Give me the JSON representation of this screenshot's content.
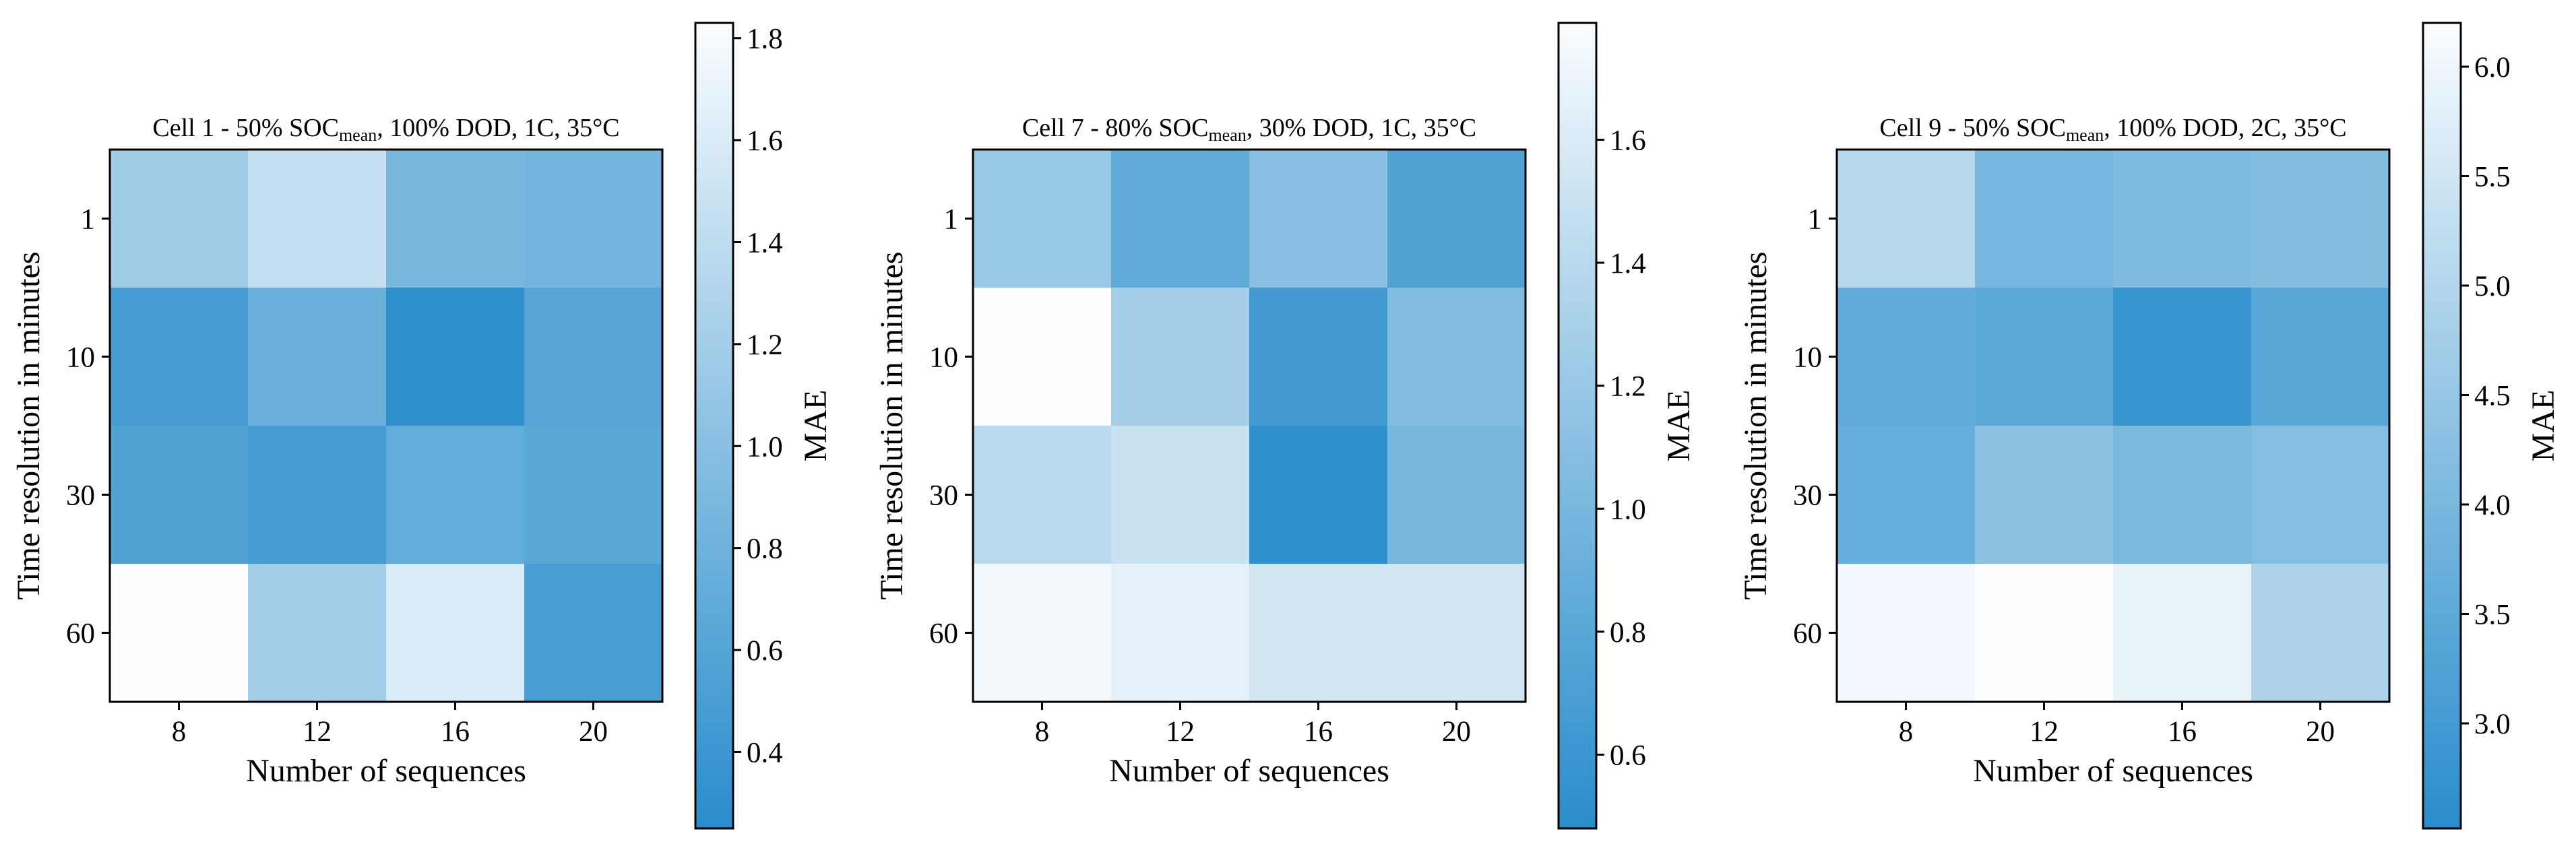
{
  "chart_data": [
    {
      "type": "heatmap",
      "title": {
        "prefix": "Cell 1 - 50% SOC",
        "subscript": "mean",
        "suffix": ", 100% DOD, 1C, 35°C"
      },
      "xlabel": "Number of sequences",
      "ylabel": "Time resolution in minutes",
      "x_categories": [
        "8",
        "12",
        "16",
        "20"
      ],
      "y_categories": [
        "1",
        "10",
        "30",
        "60"
      ],
      "values": [
        [
          1.17,
          1.45,
          0.88,
          0.84
        ],
        [
          0.48,
          0.76,
          0.3,
          0.62
        ],
        [
          0.56,
          0.49,
          0.7,
          0.64
        ],
        [
          1.83,
          1.2,
          1.6,
          0.5
        ]
      ],
      "colorbar": {
        "label": "MAE",
        "range": [
          0.25,
          1.83
        ],
        "ticks": [
          "0.4",
          "0.6",
          "0.8",
          "1.0",
          "1.2",
          "1.4",
          "1.6",
          "1.8"
        ]
      }
    },
    {
      "type": "heatmap",
      "title": {
        "prefix": "Cell 7 - 80% SOC",
        "subscript": "mean",
        "suffix": ", 30% DOD, 1C, 35°C"
      },
      "xlabel": "Number of sequences",
      "ylabel": "Time resolution in minutes",
      "x_categories": [
        "8",
        "12",
        "16",
        "20"
      ],
      "y_categories": [
        "1",
        "10",
        "30",
        "60"
      ],
      "values": [
        [
          1.2,
          0.85,
          1.1,
          0.74
        ],
        [
          1.79,
          1.28,
          0.65,
          1.05
        ],
        [
          1.4,
          1.5,
          0.52,
          1.0
        ],
        [
          1.75,
          1.66,
          1.55,
          1.55
        ]
      ],
      "colorbar": {
        "label": "MAE",
        "range": [
          0.48,
          1.79
        ],
        "ticks": [
          "0.6",
          "0.8",
          "1.0",
          "1.2",
          "1.4",
          "1.6"
        ]
      }
    },
    {
      "type": "heatmap",
      "title": {
        "prefix": "Cell 9 - 50% SOC",
        "subscript": "mean",
        "suffix": ", 100% DOD, 2C, 35°C"
      },
      "xlabel": "Number of sequences",
      "ylabel": "Time resolution in minutes",
      "x_categories": [
        "8",
        "12",
        "16",
        "20"
      ],
      "y_categories": [
        "1",
        "10",
        "30",
        "60"
      ],
      "values": [
        [
          5.05,
          3.95,
          4.1,
          4.15
        ],
        [
          3.55,
          3.5,
          2.8,
          3.4
        ],
        [
          3.65,
          4.35,
          4.05,
          4.2
        ],
        [
          6.05,
          6.2,
          5.9,
          4.9
        ]
      ],
      "colorbar": {
        "label": "MAE",
        "range": [
          2.52,
          6.2
        ],
        "ticks": [
          "3.0",
          "3.5",
          "4.0",
          "4.5",
          "5.0",
          "5.5",
          "6.0"
        ]
      }
    }
  ]
}
